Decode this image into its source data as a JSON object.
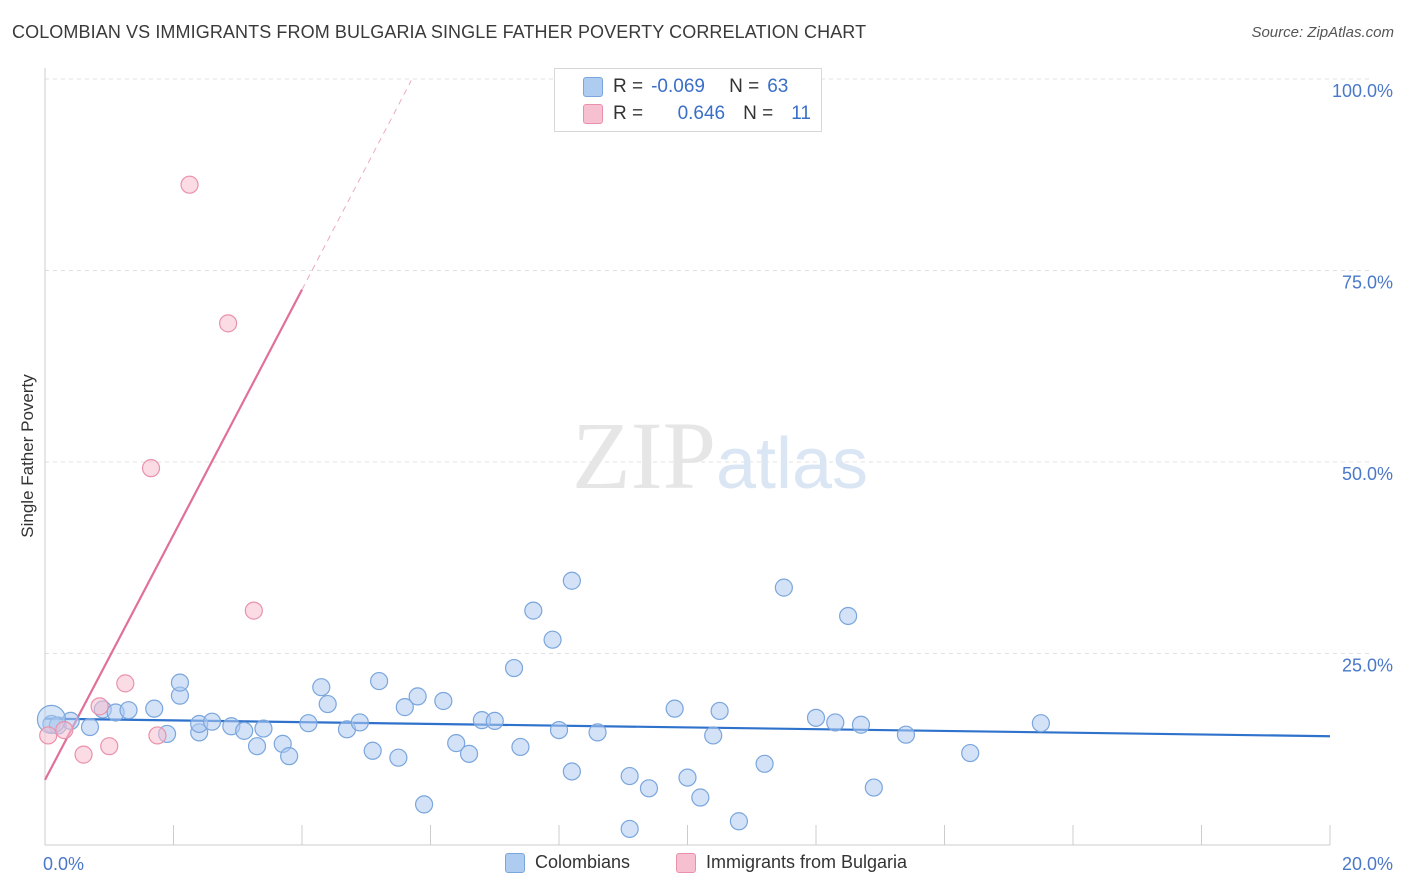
{
  "header": {
    "title": "COLOMBIAN VS IMMIGRANTS FROM BULGARIA SINGLE FATHER POVERTY CORRELATION CHART",
    "source": "Source: ZipAtlas.com"
  },
  "watermark": {
    "zip": "ZIP",
    "atlas": "atlas"
  },
  "colors": {
    "colombians_fill": "#aecbf0",
    "colombians_stroke": "#7aa6dd",
    "colombians_line": "#2f72cc",
    "bulgaria_fill": "#f7c0d0",
    "bulgaria_stroke": "#e991ab",
    "bulgaria_line": "#e0709a",
    "grid": "#e0e0e0",
    "tick_text": "#4a78c8"
  },
  "legend": {
    "rows": [
      {
        "r_label": "R =",
        "r_value": "-0.069",
        "n_label": "N =",
        "n_value": "63"
      },
      {
        "r_label": "R =",
        "r_value": "0.646",
        "n_label": "N =",
        "n_value": "11"
      }
    ]
  },
  "bottom_legend": {
    "series1": "Colombians",
    "series2": "Immigrants from Bulgaria"
  },
  "chart_data": {
    "type": "scatter",
    "title": "COLOMBIAN VS IMMIGRANTS FROM BULGARIA SINGLE FATHER POVERTY CORRELATION CHART",
    "xlabel": "",
    "ylabel": "Single Father Poverty",
    "xlim": [
      0,
      20
    ],
    "ylim": [
      0,
      100
    ],
    "x_tick_labels": [
      "0.0%",
      "20.0%"
    ],
    "y_ticks": [
      25,
      50,
      75,
      100
    ],
    "y_tick_labels": [
      "25.0%",
      "50.0%",
      "75.0%",
      "100.0%"
    ],
    "grid": true,
    "series": [
      {
        "name": "Colombians",
        "r": -0.069,
        "n": 63,
        "trend": {
          "x0": 0,
          "y0": 16.5,
          "x1": 20,
          "y1": 14.2
        },
        "points": [
          [
            0.1,
            15.8
          ],
          [
            0.2,
            15.6
          ],
          [
            0.4,
            16.2
          ],
          [
            0.7,
            15.4
          ],
          [
            0.9,
            17.7
          ],
          [
            1.1,
            17.3
          ],
          [
            1.3,
            17.6
          ],
          [
            1.7,
            17.8
          ],
          [
            1.9,
            14.5
          ],
          [
            2.1,
            19.5
          ],
          [
            2.1,
            21.2
          ],
          [
            2.4,
            14.7
          ],
          [
            2.4,
            15.8
          ],
          [
            2.6,
            16.1
          ],
          [
            2.9,
            15.5
          ],
          [
            3.1,
            14.9
          ],
          [
            3.3,
            12.9
          ],
          [
            3.4,
            15.2
          ],
          [
            3.7,
            13.2
          ],
          [
            3.8,
            11.6
          ],
          [
            4.1,
            15.9
          ],
          [
            4.3,
            20.6
          ],
          [
            4.4,
            18.4
          ],
          [
            4.7,
            15.1
          ],
          [
            4.9,
            16.0
          ],
          [
            5.1,
            12.3
          ],
          [
            5.2,
            21.4
          ],
          [
            5.5,
            11.4
          ],
          [
            5.6,
            18.0
          ],
          [
            5.8,
            19.4
          ],
          [
            5.9,
            5.3
          ],
          [
            6.2,
            18.8
          ],
          [
            6.4,
            13.3
          ],
          [
            6.6,
            11.9
          ],
          [
            6.8,
            16.3
          ],
          [
            7.0,
            16.2
          ],
          [
            7.3,
            23.1
          ],
          [
            7.4,
            12.8
          ],
          [
            7.6,
            30.6
          ],
          [
            7.9,
            26.8
          ],
          [
            8.0,
            15.0
          ],
          [
            8.2,
            9.6
          ],
          [
            8.2,
            34.5
          ],
          [
            8.6,
            14.7
          ],
          [
            9.1,
            9.0
          ],
          [
            9.4,
            7.4
          ],
          [
            9.8,
            17.8
          ],
          [
            10.0,
            8.8
          ],
          [
            10.2,
            6.2
          ],
          [
            10.4,
            14.3
          ],
          [
            10.5,
            17.5
          ],
          [
            10.8,
            3.1
          ],
          [
            11.2,
            10.6
          ],
          [
            11.5,
            33.6
          ],
          [
            12.0,
            16.6
          ],
          [
            12.3,
            16.0
          ],
          [
            12.5,
            29.9
          ],
          [
            12.7,
            15.7
          ],
          [
            12.9,
            7.5
          ],
          [
            13.4,
            14.4
          ],
          [
            14.4,
            12.0
          ],
          [
            15.5,
            15.9
          ],
          [
            9.1,
            2.1
          ]
        ]
      },
      {
        "name": "Immigrants from Bulgaria",
        "r": 0.646,
        "n": 11,
        "trend": {
          "x0": 0,
          "y0": 8.5,
          "x1": 4.0,
          "y1": 72.5,
          "dash_x1": 5.7,
          "dash_y1": 99.8
        },
        "points": [
          [
            0.05,
            14.3
          ],
          [
            0.3,
            15.0
          ],
          [
            0.6,
            11.8
          ],
          [
            0.85,
            18.1
          ],
          [
            1.0,
            12.9
          ],
          [
            1.25,
            21.1
          ],
          [
            1.75,
            14.3
          ],
          [
            1.65,
            49.2
          ],
          [
            2.25,
            86.2
          ],
          [
            2.85,
            68.1
          ],
          [
            3.25,
            30.6
          ]
        ]
      }
    ]
  }
}
